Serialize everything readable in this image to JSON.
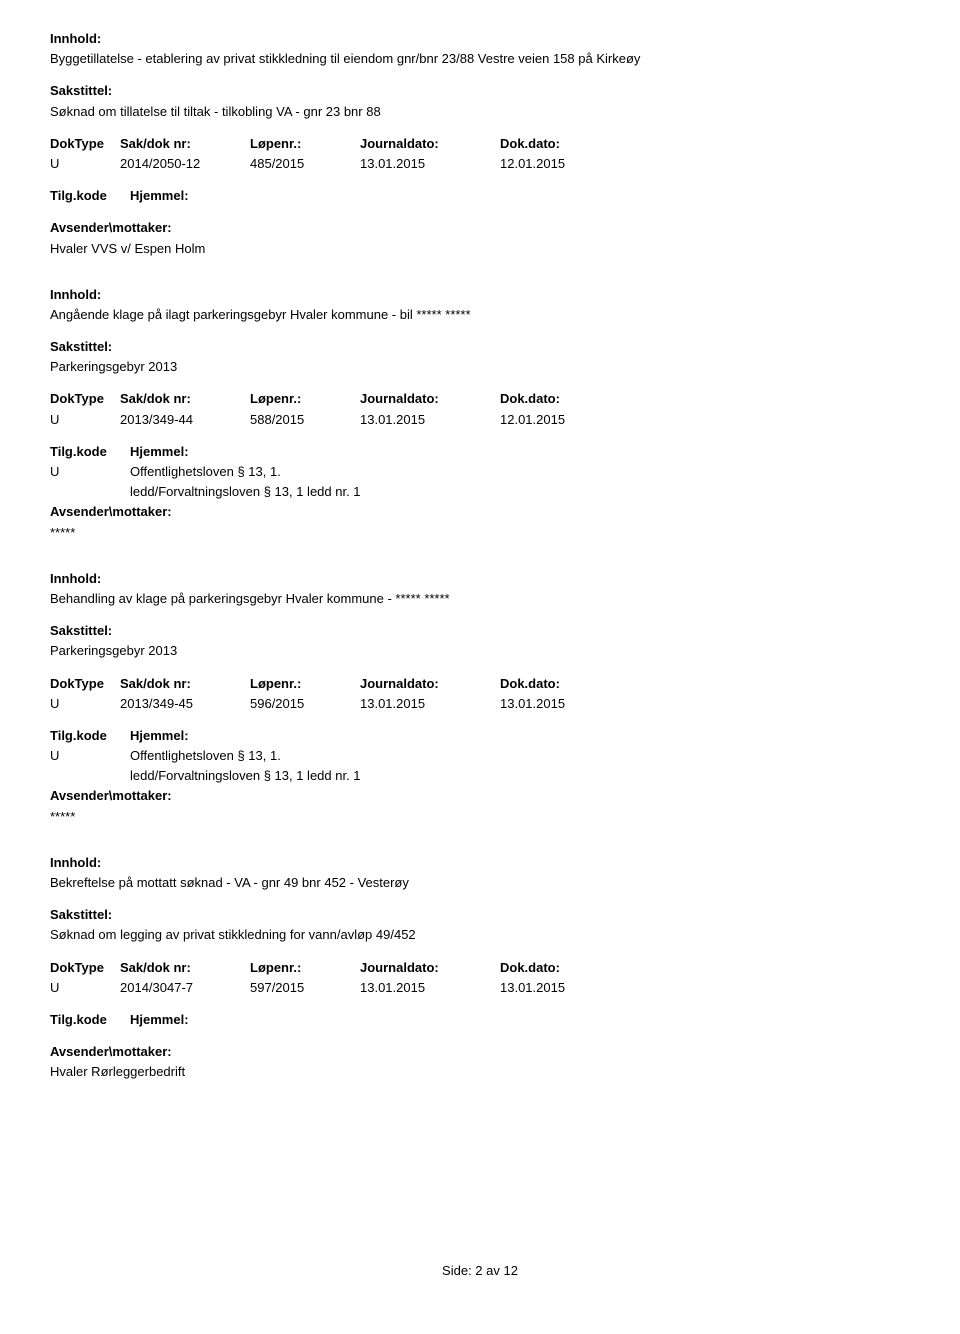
{
  "labels": {
    "innhold": "Innhold:",
    "sakstittel": "Sakstittel:",
    "doktype": "DokType",
    "sakdok": "Sak/dok nr:",
    "lopenr": "Løpenr.:",
    "journaldato": "Journaldato:",
    "dokdato": "Dok.dato:",
    "tilgkode": "Tilg.kode",
    "hjemmel": "Hjemmel:",
    "avsender": "Avsender\\mottaker:"
  },
  "entries": [
    {
      "innhold": "Byggetillatelse - etablering av privat stikkledning til eiendom gnr/bnr 23/88 Vestre veien 158 på Kirkeøy",
      "sakstittel": "Søknad om tillatelse til tiltak - tilkobling VA - gnr 23 bnr 88",
      "doktype": "U",
      "sakdok": "2014/2050-12",
      "lopenr": "485/2015",
      "journaldato": "13.01.2015",
      "dokdato": "12.01.2015",
      "tilgkode": "",
      "hjemmel": "",
      "avsender": "Hvaler VVS v/ Espen Holm"
    },
    {
      "innhold": "Angående klage på ilagt parkeringsgebyr Hvaler kommune - bil ***** *****",
      "sakstittel": "Parkeringsgebyr 2013",
      "doktype": "U",
      "sakdok": "2013/349-44",
      "lopenr": "588/2015",
      "journaldato": "13.01.2015",
      "dokdato": "12.01.2015",
      "tilgkode": "U",
      "hjemmel": "Offentlighetsloven § 13, 1.",
      "hjemmel2": "ledd/Forvaltningsloven § 13, 1 ledd nr. 1",
      "avsender": "*****"
    },
    {
      "innhold": "Behandling av klage på parkeringsgebyr Hvaler kommune - ***** *****",
      "sakstittel": "Parkeringsgebyr 2013",
      "doktype": "U",
      "sakdok": "2013/349-45",
      "lopenr": "596/2015",
      "journaldato": "13.01.2015",
      "dokdato": "13.01.2015",
      "tilgkode": "U",
      "hjemmel": "Offentlighetsloven § 13, 1.",
      "hjemmel2": "ledd/Forvaltningsloven § 13, 1 ledd nr. 1",
      "avsender": "*****"
    },
    {
      "innhold": "Bekreftelse på mottatt søknad - VA - gnr 49 bnr 452 - Vesterøy",
      "sakstittel": "Søknad om legging av privat stikkledning for vann/avløp 49/452",
      "doktype": "U",
      "sakdok": "2014/3047-7",
      "lopenr": "597/2015",
      "journaldato": "13.01.2015",
      "dokdato": "13.01.2015",
      "tilgkode": "",
      "hjemmel": "",
      "avsender": "Hvaler Rørleggerbedrift"
    }
  ],
  "footer": "Side: 2 av 12"
}
